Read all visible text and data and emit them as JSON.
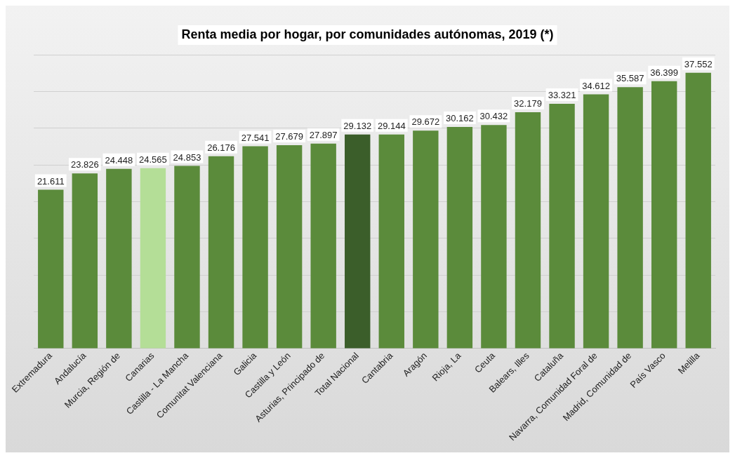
{
  "chart_data": {
    "type": "bar",
    "title": "Renta media por hogar, por comunidades autónomas, 2019 (*)",
    "categories": [
      "Extremadura",
      "Andalucía",
      "Murcia, Región de",
      "Canarias",
      "Castilla - La Mancha",
      "Comunitat Valenciana",
      "Galicia",
      "Castilla y León",
      "Asturias, Principado de",
      "Total Nacional",
      "Cantabria",
      "Aragón",
      "Rioja, La",
      "Ceuta",
      "Balears, Illes",
      "Cataluña",
      "Navarra, Comunidad Foral de",
      "Madrid, Comunidad de",
      "País Vasco",
      "Melilla"
    ],
    "values": [
      21611,
      23826,
      24448,
      24565,
      24853,
      26176,
      27541,
      27679,
      27897,
      29132,
      29144,
      29672,
      30162,
      30432,
      32179,
      33321,
      34612,
      35587,
      36399,
      37552
    ],
    "value_labels": [
      "21.611",
      "23.826",
      "24.448",
      "24.565",
      "24.853",
      "26.176",
      "27.541",
      "27.679",
      "27.897",
      "29.132",
      "29.144",
      "29.672",
      "30.162",
      "30.432",
      "32.179",
      "33.321",
      "34.612",
      "35.587",
      "36.399",
      "37.552"
    ],
    "colors": [
      "#5b8b3b",
      "#5b8b3b",
      "#5b8b3b",
      "#b4de97",
      "#5b8b3b",
      "#5b8b3b",
      "#5b8b3b",
      "#5b8b3b",
      "#5b8b3b",
      "#3b5e2a",
      "#5b8b3b",
      "#5b8b3b",
      "#5b8b3b",
      "#5b8b3b",
      "#5b8b3b",
      "#5b8b3b",
      "#5b8b3b",
      "#5b8b3b",
      "#5b8b3b",
      "#5b8b3b"
    ],
    "ylim": [
      0,
      40000
    ],
    "yticks": [
      {
        "value": 0,
        "label": null
      },
      {
        "value": 5000,
        "label": null
      },
      {
        "value": 10000,
        "label": null
      },
      {
        "value": 15000,
        "label": null
      },
      {
        "value": 20000,
        "label": null
      },
      {
        "value": 25000,
        "label": null
      },
      {
        "value": 30000,
        "label": null
      },
      {
        "value": 35000,
        "label": null
      },
      {
        "value": 40000,
        "label": null
      }
    ],
    "grid": "y",
    "legend": false,
    "tick_labels": "x"
  }
}
